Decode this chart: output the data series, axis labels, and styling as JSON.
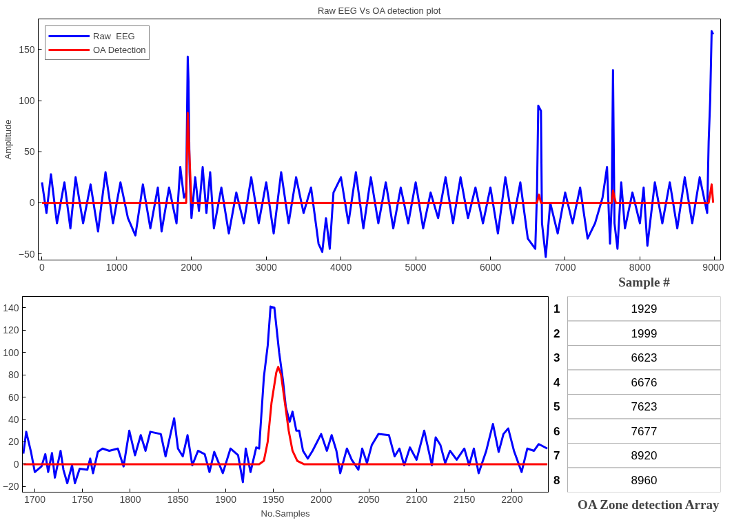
{
  "chart_data": [
    {
      "type": "line",
      "title": "Raw EEG Vs OA detection plot",
      "ylabel": "Amplitude",
      "xlim": [
        -50,
        9080
      ],
      "ylim": [
        -56,
        180
      ],
      "xticks": [
        0,
        1000,
        2000,
        3000,
        4000,
        5000,
        6000,
        7000,
        8000,
        9000
      ],
      "yticks": [
        -50,
        0,
        50,
        100,
        150
      ],
      "grid": false,
      "legend": "top left",
      "line_style": "solid",
      "marker": "none",
      "series": [
        {
          "name": "Raw  EEG",
          "color": "#0000ff",
          "x": [
            0,
            60,
            120,
            200,
            300,
            380,
            450,
            550,
            650,
            750,
            850,
            950,
            1050,
            1150,
            1250,
            1350,
            1450,
            1550,
            1600,
            1700,
            1800,
            1850,
            1900,
            1929,
            1950,
            1960,
            1975,
            2000,
            2050,
            2100,
            2150,
            2200,
            2250,
            2300,
            2400,
            2500,
            2600,
            2700,
            2800,
            2900,
            3000,
            3100,
            3200,
            3300,
            3400,
            3500,
            3600,
            3700,
            3750,
            3800,
            3850,
            3900,
            4000,
            4100,
            4200,
            4300,
            4400,
            4500,
            4600,
            4700,
            4800,
            4900,
            5000,
            5100,
            5200,
            5300,
            5400,
            5500,
            5600,
            5700,
            5800,
            5900,
            6000,
            6100,
            6200,
            6300,
            6400,
            6500,
            6600,
            6623,
            6640,
            6676,
            6690,
            6740,
            6800,
            6900,
            7000,
            7100,
            7200,
            7300,
            7400,
            7500,
            7560,
            7600,
            7623,
            7640,
            7660,
            7700,
            7750,
            7800,
            7900,
            8000,
            8050,
            8100,
            8200,
            8300,
            8400,
            8500,
            8600,
            8700,
            8800,
            8900,
            8920,
            8940,
            8960,
            8980
          ],
          "values": [
            20,
            -10,
            28,
            -20,
            20,
            -25,
            25,
            -20,
            18,
            -28,
            30,
            -20,
            20,
            -15,
            -32,
            18,
            -25,
            15,
            -28,
            15,
            -20,
            35,
            5,
            10,
            143,
            120,
            30,
            -15,
            25,
            -8,
            35,
            -10,
            30,
            -25,
            15,
            -30,
            10,
            -20,
            25,
            -20,
            20,
            -30,
            30,
            -20,
            25,
            -10,
            15,
            -40,
            -48,
            -15,
            -45,
            10,
            25,
            -20,
            30,
            -25,
            25,
            -20,
            20,
            -25,
            15,
            -20,
            20,
            -25,
            10,
            -15,
            25,
            -20,
            25,
            -15,
            15,
            -20,
            15,
            -30,
            25,
            -20,
            20,
            -35,
            -45,
            10,
            95,
            90,
            -20,
            -53,
            0,
            -30,
            10,
            -20,
            15,
            -35,
            -20,
            5,
            35,
            -40,
            0,
            130,
            -20,
            -45,
            20,
            -25,
            10,
            -20,
            15,
            -42,
            20,
            -20,
            20,
            -25,
            25,
            -20,
            25,
            -10,
            60,
            100,
            168,
            165
          ]
        },
        {
          "name": "OA Detection",
          "color": "#ff0000",
          "x": [
            0,
            1929,
            1950,
            1999,
            6623,
            6650,
            6676,
            7623,
            7640,
            7677,
            8920,
            8960,
            8980
          ],
          "values": [
            0,
            0,
            88,
            0,
            0,
            8,
            0,
            0,
            12,
            0,
            0,
            18,
            0
          ]
        }
      ]
    },
    {
      "type": "line",
      "xlabel": "No.Samples",
      "xlim": [
        1687,
        2238
      ],
      "ylim": [
        -25,
        150
      ],
      "xticks": [
        1700,
        1750,
        1800,
        1850,
        1900,
        1950,
        2000,
        2050,
        2100,
        2150,
        2200
      ],
      "yticks": [
        -20,
        0,
        20,
        40,
        60,
        80,
        100,
        120,
        140
      ],
      "grid": false,
      "legend": false,
      "line_style": "solid",
      "marker": "none",
      "series": [
        {
          "color": "#0000ff",
          "x": [
            1688,
            1691,
            1696,
            1700,
            1707,
            1711,
            1714,
            1718,
            1721,
            1727,
            1730,
            1734,
            1739,
            1742,
            1747,
            1755,
            1758,
            1761,
            1766,
            1771,
            1778,
            1787,
            1793,
            1799,
            1805,
            1811,
            1816,
            1821,
            1832,
            1837,
            1843,
            1846,
            1850,
            1855,
            1860,
            1865,
            1871,
            1878,
            1883,
            1888,
            1897,
            1905,
            1913,
            1918,
            1921,
            1926,
            1932,
            1935,
            1940,
            1944,
            1947,
            1951,
            1956,
            1960,
            1963,
            1967,
            1970,
            1974,
            1977,
            1981,
            1986,
            1991,
            2000,
            2006,
            2011,
            2016,
            2020,
            2027,
            2032,
            2039,
            2043,
            2048,
            2053,
            2060,
            2071,
            2077,
            2082,
            2087,
            2093,
            2100,
            2108,
            2116,
            2120,
            2125,
            2130,
            2135,
            2142,
            2150,
            2155,
            2160,
            2165,
            2173,
            2180,
            2186,
            2191,
            2196,
            2202,
            2210,
            2216,
            2223,
            2228,
            2237
          ],
          "values": [
            9.5,
            29,
            11,
            -7,
            -2,
            9,
            -7,
            10,
            -12,
            12,
            -5,
            -17,
            -1,
            -17,
            -4,
            -5,
            5,
            -8,
            11,
            14,
            12,
            14,
            -2,
            30,
            8,
            26,
            12,
            29,
            27,
            7,
            30,
            41,
            14,
            7,
            26,
            -1,
            12,
            9,
            -7,
            11,
            -8,
            14,
            8,
            -16,
            14,
            -7,
            15,
            14,
            78,
            106,
            141,
            140,
            100,
            75,
            51,
            38,
            47,
            30,
            30,
            12,
            5,
            12,
            27,
            12,
            26,
            12,
            -8,
            14,
            4,
            -5,
            14,
            1,
            17,
            27,
            26,
            7,
            14,
            -1,
            15,
            4,
            30,
            -1,
            24,
            17,
            1,
            12,
            4,
            14,
            -1,
            14,
            -8,
            12,
            36,
            11,
            27,
            32,
            12,
            -7,
            14,
            12,
            18,
            14
          ]
        },
        {
          "color": "#ff0000",
          "x": [
            1688,
            1935,
            1940,
            1944,
            1948,
            1953,
            1955,
            1958,
            1962,
            1966,
            1970,
            1975,
            1982,
            2237
          ],
          "values": [
            0,
            0,
            3,
            20,
            55,
            82,
            87,
            80,
            55,
            30,
            12,
            3,
            0,
            0
          ]
        }
      ]
    },
    {
      "type": "heatmap",
      "annotations": [
        "OA Zone detection Array"
      ],
      "categories": [
        "Sample #"
      ],
      "y_categories": [
        "1",
        "2",
        "3",
        "4",
        "5",
        "6",
        "7",
        "8"
      ],
      "cells": [
        [
          1929
        ],
        [
          1999
        ],
        [
          6623
        ],
        [
          6676
        ],
        [
          7623
        ],
        [
          7677
        ],
        [
          8920
        ],
        [
          8960
        ]
      ],
      "data_labels": true
    }
  ]
}
